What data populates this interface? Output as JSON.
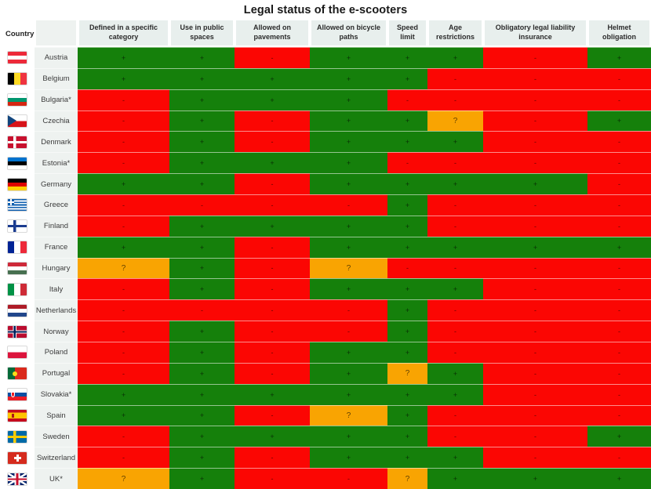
{
  "title": "Legal status of the e-scooters",
  "legend": {
    "yes_symbol": "+",
    "no_symbol": "-",
    "unknown_symbol": "?"
  },
  "colors": {
    "yes_green": "#15800b",
    "no_red": "#fb0603",
    "unknown_orange": "#f9a402",
    "header_bg": "#e8efed",
    "country_col_bg": "#eef2f0",
    "title_color": "#191919",
    "symbol_color": "rgba(0,0,0,0.62)"
  },
  "chart_data": {
    "type": "table",
    "title": "Legal status of the e-scooters",
    "country_header": "Country",
    "columns": [
      "Defined in a specific category",
      "Use in public spaces",
      "Allowed on pavements",
      "Allowed on bicycle paths",
      "Speed limit",
      "Age restrictions",
      "Obligatory legal liability insurance",
      "Helmet obligation"
    ],
    "rows": [
      {
        "country": "Austria",
        "flag": "austria",
        "values": [
          "+",
          "+",
          "-",
          "+",
          "+",
          "+",
          "-",
          "+"
        ]
      },
      {
        "country": "Belgium",
        "flag": "belgium",
        "values": [
          "+",
          "+",
          "+",
          "+",
          "+",
          "-",
          "-",
          "-"
        ]
      },
      {
        "country": "Bulgaria*",
        "flag": "bulgaria",
        "values": [
          "-",
          "+",
          "+",
          "+",
          "-",
          "-",
          "-",
          "-"
        ]
      },
      {
        "country": "Czechia",
        "flag": "czechia",
        "values": [
          "-",
          "+",
          "-",
          "+",
          "+",
          "?",
          "-",
          "+"
        ]
      },
      {
        "country": "Denmark",
        "flag": "denmark",
        "values": [
          "-",
          "+",
          "-",
          "+",
          "+",
          "+",
          "-",
          "-"
        ]
      },
      {
        "country": "Estonia*",
        "flag": "estonia",
        "values": [
          "-",
          "+",
          "+",
          "+",
          "-",
          "-",
          "-",
          "-"
        ]
      },
      {
        "country": "Germany",
        "flag": "germany",
        "values": [
          "+",
          "+",
          "-",
          "+",
          "+",
          "+",
          "+",
          "-"
        ]
      },
      {
        "country": "Greece",
        "flag": "greece",
        "values": [
          "-",
          "-",
          "-",
          "-",
          "+",
          "-",
          "-",
          "-"
        ]
      },
      {
        "country": "Finland",
        "flag": "finland",
        "values": [
          "-",
          "+",
          "+",
          "+",
          "+",
          "-",
          "-",
          "-"
        ]
      },
      {
        "country": "France",
        "flag": "france",
        "values": [
          "+",
          "+",
          "-",
          "+",
          "+",
          "+",
          "+",
          "+"
        ]
      },
      {
        "country": "Hungary",
        "flag": "hungary",
        "values": [
          "?",
          "+",
          "-",
          "?",
          "-",
          "-",
          "-",
          "-"
        ]
      },
      {
        "country": "Italy",
        "flag": "italy",
        "values": [
          "-",
          "+",
          "-",
          "+",
          "+",
          "+",
          "-",
          "-"
        ]
      },
      {
        "country": "Netherlands",
        "flag": "netherlands",
        "values": [
          "-",
          "-",
          "-",
          "-",
          "+",
          "-",
          "-",
          "-"
        ]
      },
      {
        "country": "Norway",
        "flag": "norway",
        "values": [
          "-",
          "+",
          "-",
          "-",
          "+",
          "-",
          "-",
          "-"
        ]
      },
      {
        "country": "Poland",
        "flag": "poland",
        "values": [
          "-",
          "+",
          "-",
          "+",
          "+",
          "-",
          "-",
          "-"
        ]
      },
      {
        "country": "Portugal",
        "flag": "portugal",
        "values": [
          "-",
          "+",
          "-",
          "+",
          "?",
          "+",
          "-",
          "-"
        ]
      },
      {
        "country": "Slovakia*",
        "flag": "slovakia",
        "values": [
          "+",
          "+",
          "+",
          "+",
          "+",
          "+",
          "-",
          "-"
        ]
      },
      {
        "country": "Spain",
        "flag": "spain",
        "values": [
          "+",
          "+",
          "-",
          "?",
          "+",
          "-",
          "-",
          "-"
        ]
      },
      {
        "country": "Sweden",
        "flag": "sweden",
        "values": [
          "-",
          "+",
          "+",
          "+",
          "+",
          "-",
          "-",
          "+"
        ]
      },
      {
        "country": "Switzerland",
        "flag": "switzerland",
        "values": [
          "-",
          "+",
          "-",
          "+",
          "+",
          "+",
          "-",
          "-"
        ]
      },
      {
        "country": "UK*",
        "flag": "uk",
        "values": [
          "?",
          "+",
          "-",
          "-",
          "?",
          "+",
          "+",
          "+"
        ]
      }
    ]
  }
}
